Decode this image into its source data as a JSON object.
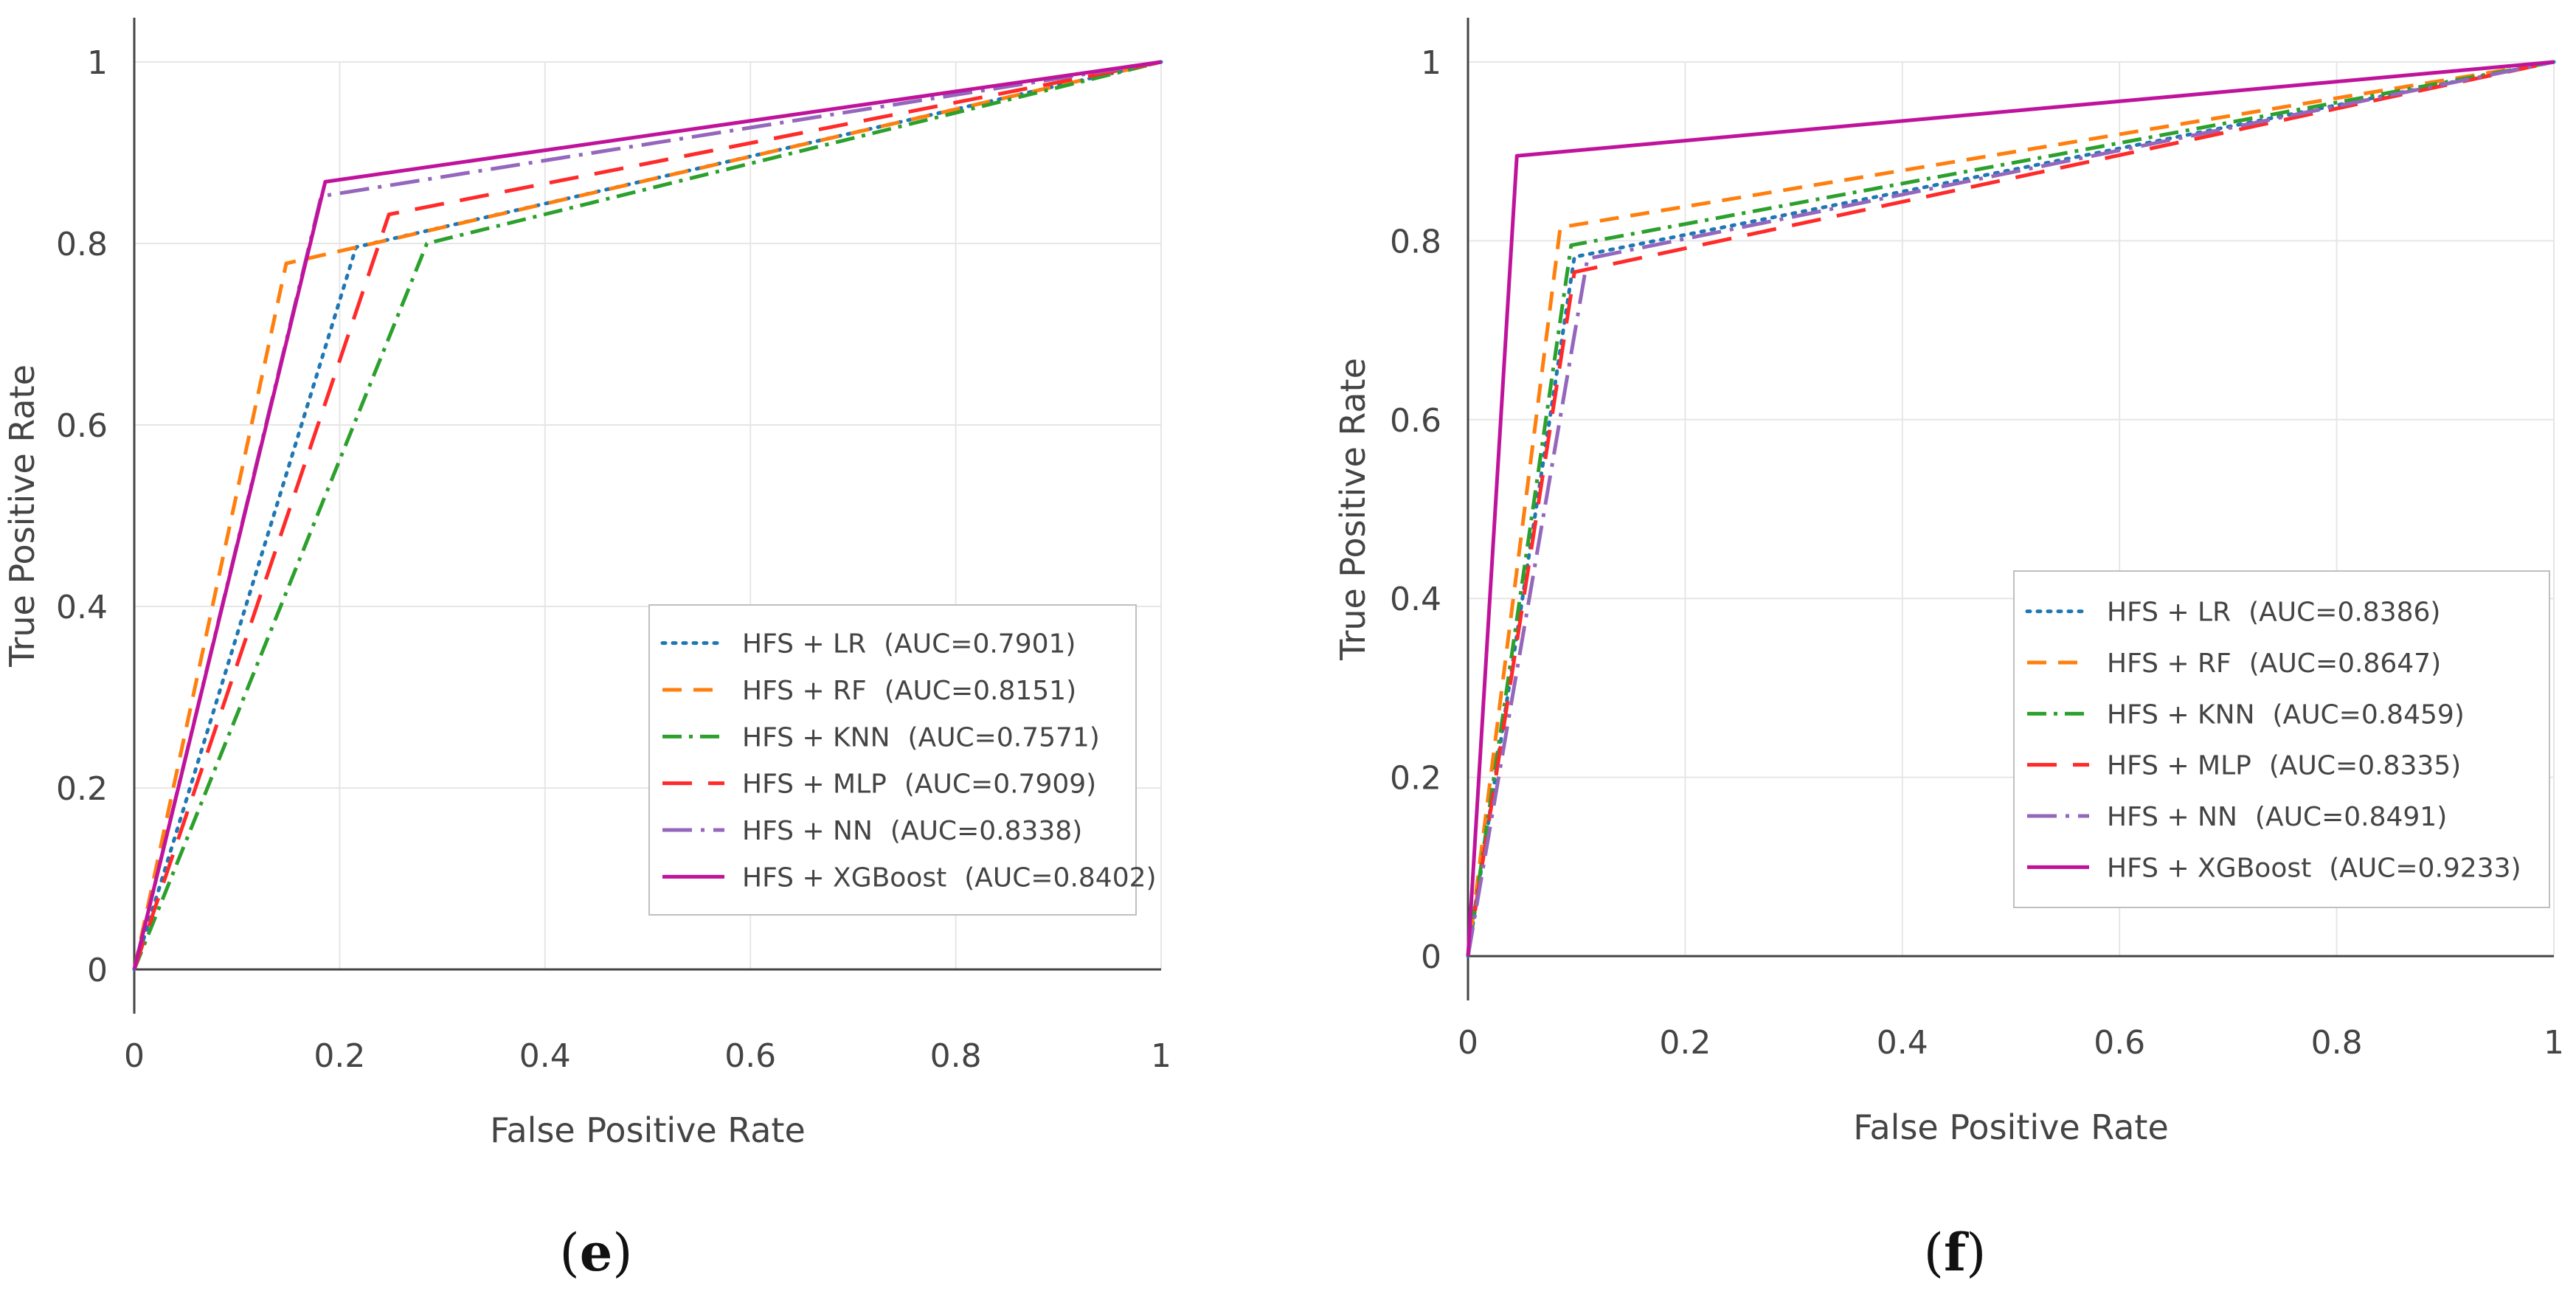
{
  "chart_data": [
    {
      "type": "line",
      "panel": "e",
      "xlabel": "False Positive Rate",
      "ylabel": "True Positive Rate",
      "xlim": [
        0,
        1
      ],
      "ylim": [
        0,
        1
      ],
      "x_ticks": [
        "0",
        "0.2",
        "0.4",
        "0.6",
        "0.8",
        "1"
      ],
      "y_ticks": [
        "0",
        "0.2",
        "0.4",
        "0.6",
        "0.8",
        "1"
      ],
      "grid": true,
      "legend_position": "bottom-right",
      "series": [
        {
          "name": "HFS + LR",
          "auc": "(AUC=0.7901)",
          "color": "#1f77b4",
          "dash": "dot",
          "x": [
            0,
            0.216,
            1
          ],
          "y": [
            0,
            0.796,
            1
          ]
        },
        {
          "name": "HFS + RF",
          "auc": "(AUC=0.8151)",
          "color": "#ff7f0e",
          "dash": "dash",
          "x": [
            0,
            0.148,
            1
          ],
          "y": [
            0,
            0.778,
            1
          ]
        },
        {
          "name": "HFS + KNN",
          "auc": "(AUC=0.7571)",
          "color": "#2ca02c",
          "dash": "dashdot",
          "x": [
            0,
            0.285,
            1
          ],
          "y": [
            0,
            0.8,
            1
          ]
        },
        {
          "name": "HFS + MLP",
          "auc": "(AUC=0.7909)",
          "color": "#ff2a2a",
          "dash": "longdash",
          "x": [
            0,
            0.248,
            1
          ],
          "y": [
            0,
            0.832,
            1
          ]
        },
        {
          "name": "HFS + NN",
          "auc": "(AUC=0.8338)",
          "color": "#9467bd",
          "dash": "longdashdot",
          "x": [
            0,
            0.182,
            1
          ],
          "y": [
            0,
            0.852,
            1
          ]
        },
        {
          "name": "HFS + XGBoost",
          "auc": "(AUC=0.8402)",
          "color": "#c0139b",
          "dash": "solid",
          "x": [
            0,
            0.186,
            1
          ],
          "y": [
            0,
            0.868,
            1
          ]
        }
      ],
      "label": "e"
    },
    {
      "type": "line",
      "panel": "f",
      "xlabel": "False Positive Rate",
      "ylabel": "True Positive Rate",
      "xlim": [
        0,
        1
      ],
      "ylim": [
        0,
        1
      ],
      "x_ticks": [
        "0",
        "0.2",
        "0.4",
        "0.6",
        "0.8",
        "1"
      ],
      "y_ticks": [
        "0",
        "0.2",
        "0.4",
        "0.6",
        "0.8",
        "1"
      ],
      "grid": true,
      "legend_position": "bottom-right",
      "series": [
        {
          "name": "HFS + LR",
          "auc": "(AUC=0.8386)",
          "color": "#1f77b4",
          "dash": "dot",
          "x": [
            0,
            0.098,
            1
          ],
          "y": [
            0,
            0.782,
            1
          ]
        },
        {
          "name": "HFS + RF",
          "auc": "(AUC=0.8647)",
          "color": "#ff7f0e",
          "dash": "dash",
          "x": [
            0,
            0.085,
            1
          ],
          "y": [
            0,
            0.815,
            1
          ]
        },
        {
          "name": "HFS + KNN",
          "auc": "(AUC=0.8459)",
          "color": "#2ca02c",
          "dash": "dashdot",
          "x": [
            0,
            0.095,
            1
          ],
          "y": [
            0,
            0.795,
            1
          ]
        },
        {
          "name": "HFS + MLP",
          "auc": "(AUC=0.8335)",
          "color": "#ff2a2a",
          "dash": "longdash",
          "x": [
            0,
            0.098,
            1
          ],
          "y": [
            0,
            0.765,
            1
          ]
        },
        {
          "name": "HFS + NN",
          "auc": "(AUC=0.8491)",
          "color": "#9467bd",
          "dash": "longdashdot",
          "x": [
            0,
            0.11,
            1
          ],
          "y": [
            0,
            0.78,
            1
          ]
        },
        {
          "name": "HFS + XGBoost",
          "auc": "(AUC=0.9233)",
          "color": "#c0139b",
          "dash": "solid",
          "x": [
            0,
            0.045,
            1
          ],
          "y": [
            0,
            0.895,
            1
          ]
        }
      ],
      "label": "f"
    }
  ]
}
